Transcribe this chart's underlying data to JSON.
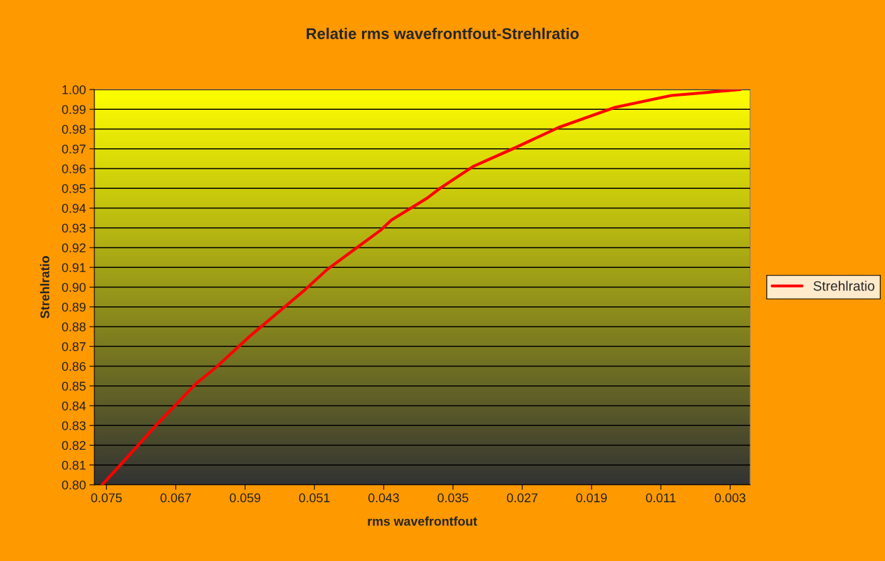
{
  "chart_data": {
    "type": "line",
    "title": "Relatie rms wavefrontfout-Strehlratio",
    "xlabel": "rms wavefrontfout",
    "ylabel": "Strehlratio",
    "x": [
      0.0755,
      0.0734,
      0.0693,
      0.0647,
      0.0622,
      0.0585,
      0.052,
      0.0495,
      0.0433,
      0.0421,
      0.038,
      0.0365,
      0.0327,
      0.0281,
      0.0227,
      0.0163,
      0.0098,
      0.0018
    ],
    "series": [
      {
        "name": "Strehlratio",
        "color": "#ff0000",
        "values": [
          0.8,
          0.81,
          0.83,
          0.851,
          0.86,
          0.875,
          0.899,
          0.909,
          0.929,
          0.934,
          0.945,
          0.95,
          0.961,
          0.97,
          0.981,
          0.991,
          0.997,
          1.0
        ]
      }
    ],
    "xlim": [
      0.0764,
      0.0007
    ],
    "xticks": [
      {
        "value": 0.075,
        "label": "0.075"
      },
      {
        "value": 0.067,
        "label": "0.067"
      },
      {
        "value": 0.059,
        "label": "0.059"
      },
      {
        "value": 0.051,
        "label": "0.051"
      },
      {
        "value": 0.043,
        "label": "0.043"
      },
      {
        "value": 0.035,
        "label": "0.035"
      },
      {
        "value": 0.027,
        "label": "0.027"
      },
      {
        "value": 0.019,
        "label": "0.019"
      },
      {
        "value": 0.011,
        "label": "0.011"
      },
      {
        "value": 0.003,
        "label": "0.003"
      }
    ],
    "ylim": [
      0.8,
      1.0
    ],
    "yticks": [
      {
        "value": 0.8,
        "label": "0.80"
      },
      {
        "value": 0.81,
        "label": "0.81"
      },
      {
        "value": 0.82,
        "label": "0.82"
      },
      {
        "value": 0.83,
        "label": "0.83"
      },
      {
        "value": 0.84,
        "label": "0.84"
      },
      {
        "value": 0.85,
        "label": "0.85"
      },
      {
        "value": 0.86,
        "label": "0.86"
      },
      {
        "value": 0.87,
        "label": "0.87"
      },
      {
        "value": 0.88,
        "label": "0.88"
      },
      {
        "value": 0.89,
        "label": "0.89"
      },
      {
        "value": 0.9,
        "label": "0.90"
      },
      {
        "value": 0.91,
        "label": "0.91"
      },
      {
        "value": 0.92,
        "label": "0.92"
      },
      {
        "value": 0.93,
        "label": "0.93"
      },
      {
        "value": 0.94,
        "label": "0.94"
      },
      {
        "value": 0.95,
        "label": "0.95"
      },
      {
        "value": 0.96,
        "label": "0.96"
      },
      {
        "value": 0.97,
        "label": "0.97"
      },
      {
        "value": 0.98,
        "label": "0.98"
      },
      {
        "value": 0.99,
        "label": "0.99"
      },
      {
        "value": 1.0,
        "label": "1.00"
      }
    ],
    "grid": "y",
    "legend": "right",
    "marker": "none",
    "line_style": "solid"
  }
}
